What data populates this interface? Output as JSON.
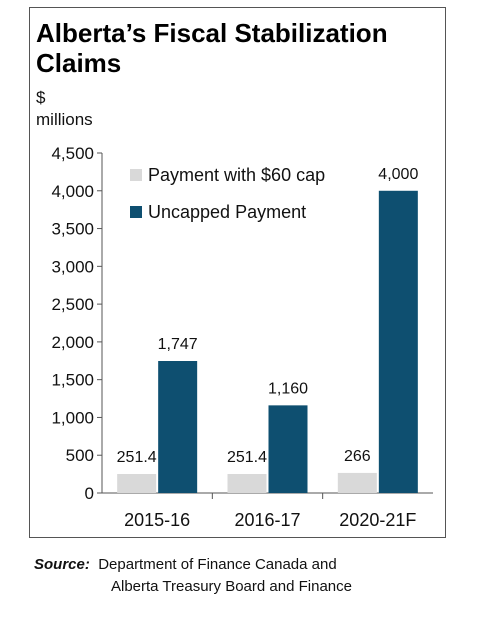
{
  "chart_data": {
    "type": "bar",
    "title": "Alberta’s Fiscal Stabilization Claims",
    "ylabel_lines": [
      "$",
      "millions"
    ],
    "categories": [
      "2015-16",
      "2016-17",
      "2020-21F"
    ],
    "series": [
      {
        "name": "Payment with $60 cap",
        "values": [
          251.4,
          251.4,
          266
        ],
        "labels": [
          "251.4",
          "251.4",
          "266"
        ],
        "color": "#d9d9d9"
      },
      {
        "name": "Uncapped Payment",
        "values": [
          1747,
          1160,
          4000
        ],
        "labels": [
          "1,747",
          "1,160",
          "4,000"
        ],
        "color": "#0e4f70"
      }
    ],
    "ylim": [
      0,
      4500
    ],
    "yticks": [
      0,
      500,
      1000,
      1500,
      2000,
      2500,
      3000,
      3500,
      4000,
      4500
    ],
    "ytick_labels": [
      "0",
      "500",
      "1,000",
      "1,500",
      "2,000",
      "2,500",
      "3,000",
      "3,500",
      "4,000",
      "4,500"
    ],
    "grid": false,
    "legend_position": "top-left"
  },
  "source": {
    "label": "Source:",
    "line1": "Department of Finance Canada and",
    "line2": "Alberta Treasury Board and Finance"
  }
}
